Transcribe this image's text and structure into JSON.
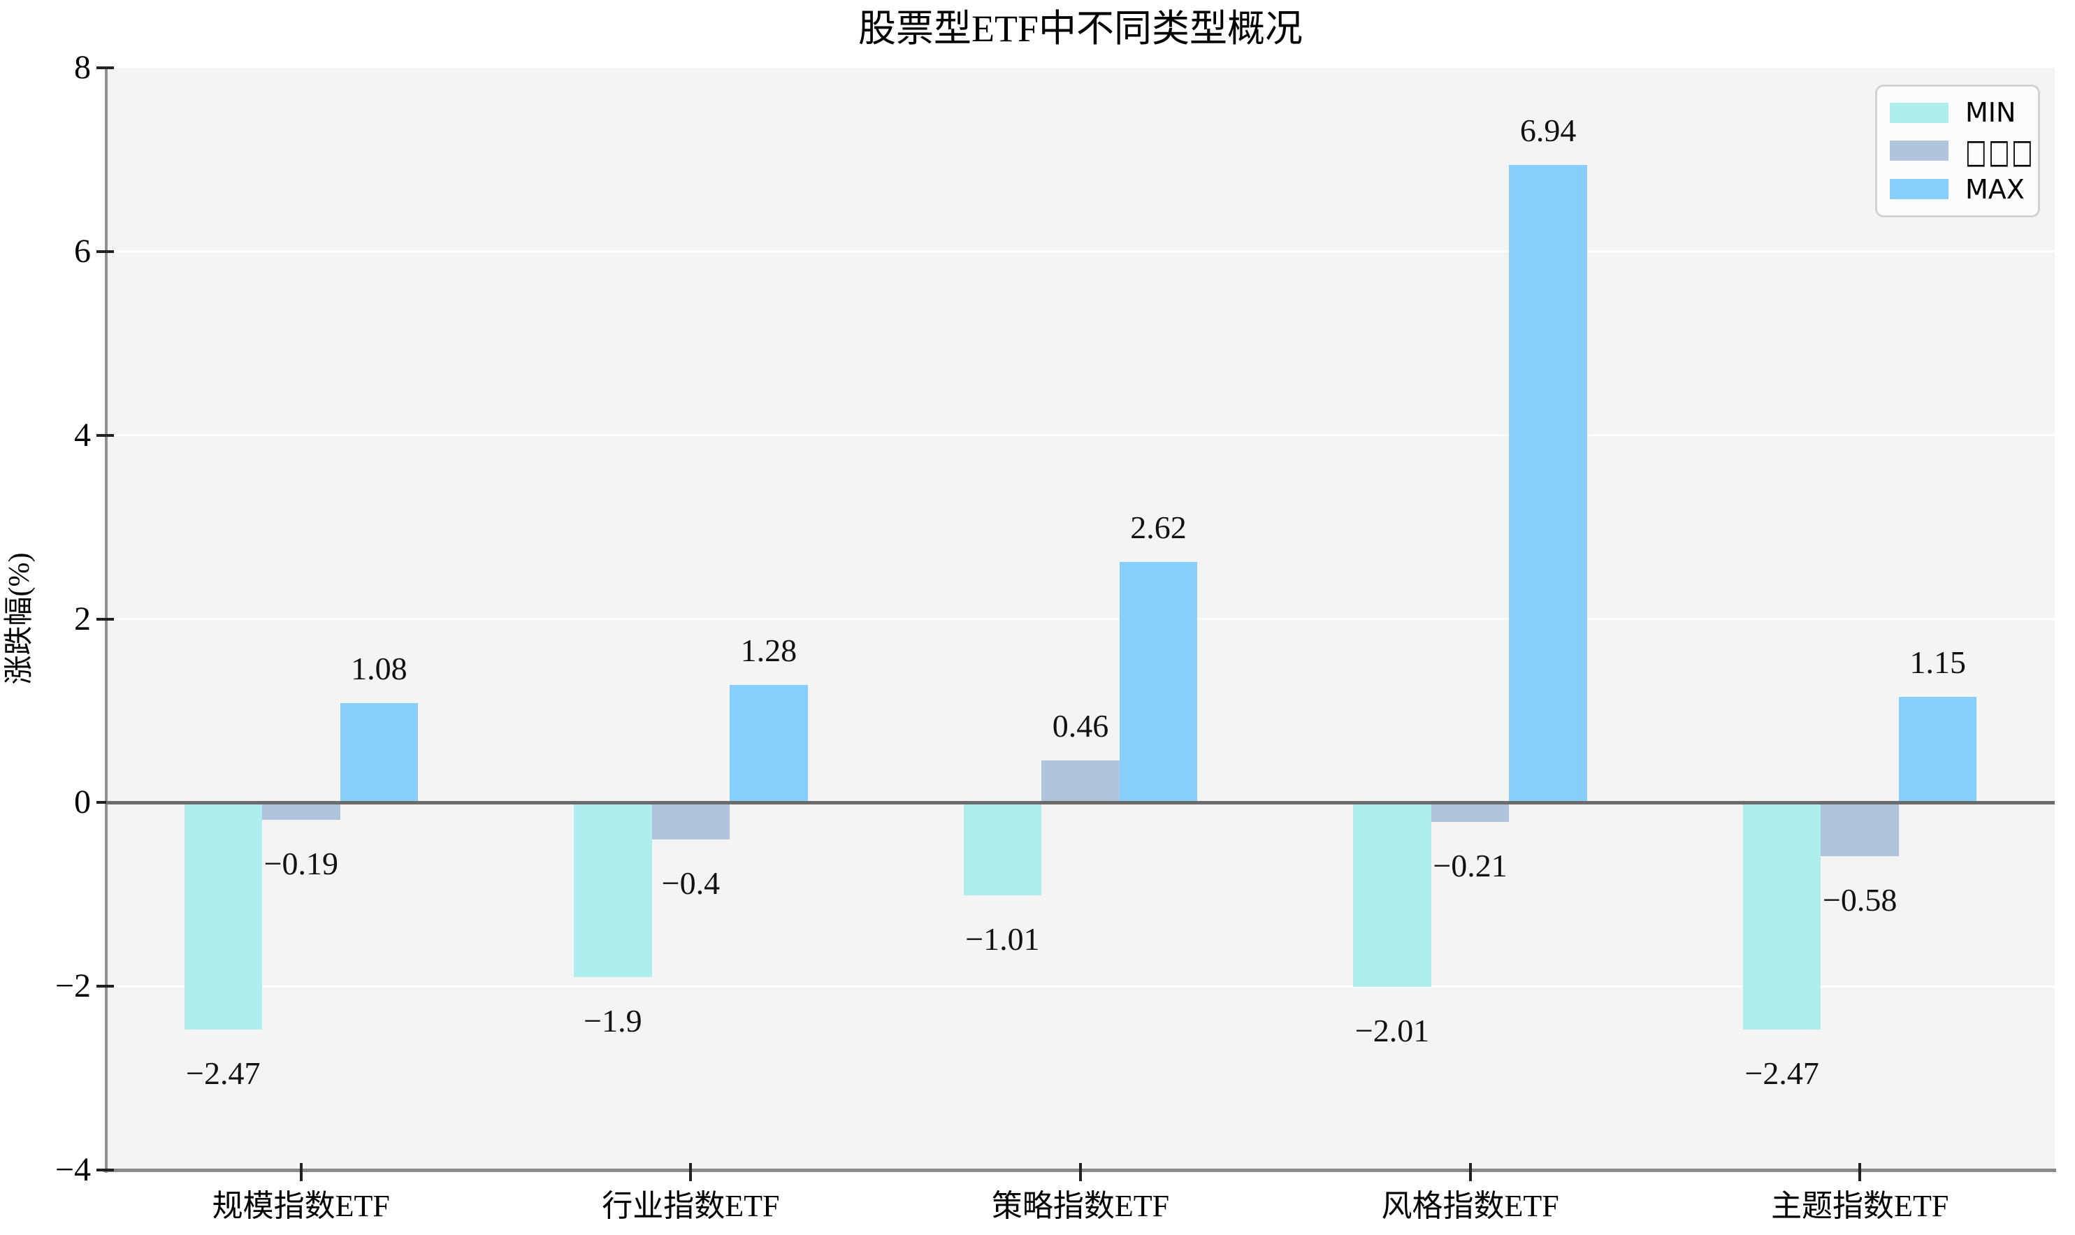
{
  "chart_data": {
    "type": "bar",
    "title": "股票型ETF中不同类型概况",
    "ylabel": "涨跌幅(%)",
    "xlabel": "",
    "categories": [
      "规模指数ETF",
      "行业指数ETF",
      "策略指数ETF",
      "风格指数ETF",
      "主题指数ETF"
    ],
    "series": [
      {
        "name": "MIN",
        "color": "#afeeee",
        "values": [
          -2.47,
          -1.9,
          -1.01,
          -2.01,
          -2.47
        ]
      },
      {
        "name": "□□□",
        "color": "#b0c4de",
        "values": [
          -0.19,
          -0.4,
          0.46,
          -0.21,
          -0.58
        ]
      },
      {
        "name": "MAX",
        "color": "#87cefa",
        "values": [
          1.08,
          1.28,
          2.62,
          6.94,
          1.15
        ]
      }
    ],
    "ylim": [
      -4,
      8
    ],
    "yticks": [
      8,
      6,
      4,
      2,
      0,
      -2,
      -4
    ],
    "grid": true,
    "legend_position": "top-right",
    "plot_background": "#f4f4f4",
    "bar_value_labels_shown": true
  }
}
